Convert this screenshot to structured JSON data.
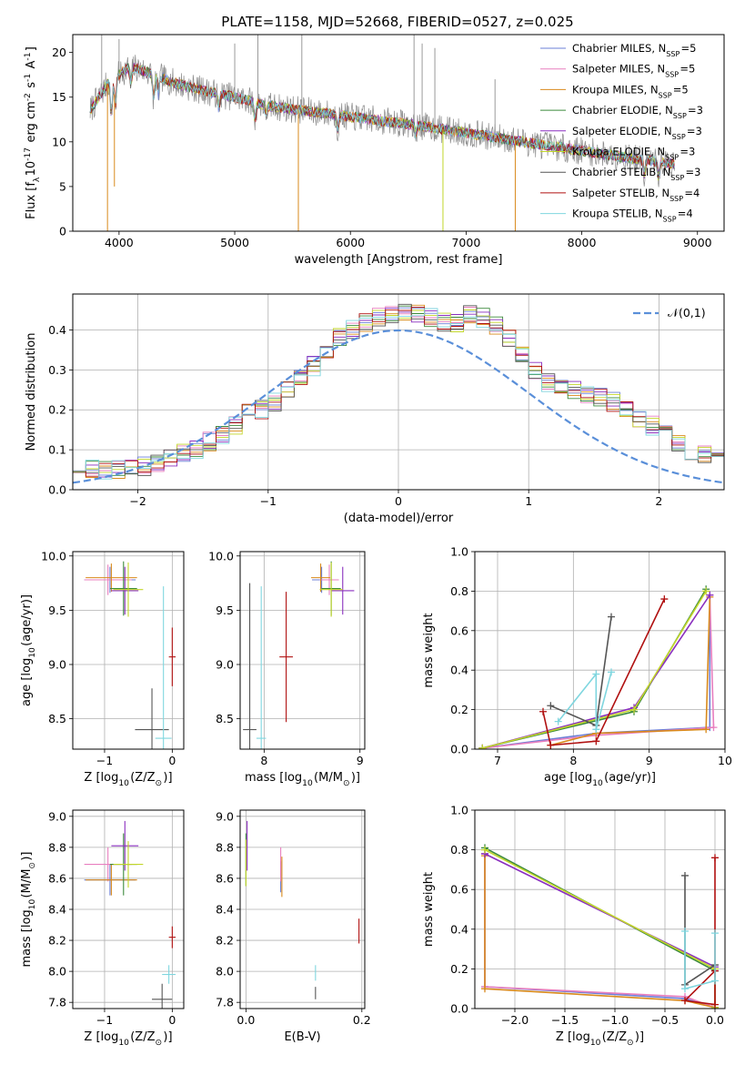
{
  "title": "PLATE=1158, MJD=52668, FIBERID=0527, z=0.025",
  "colors": {
    "Chabrier MILES": "#6b7fd7",
    "Salpeter MILES": "#e87fbf",
    "Kroupa MILES": "#d98a1c",
    "Chabrier ELODIE": "#3c8a3c",
    "Salpeter ELODIE": "#8a2fbf",
    "Kroupa ELODIE": "#c2d62a",
    "Chabrier STELIB": "#555555",
    "Salpeter STELIB": "#b01010",
    "Kroupa STELIB": "#7fd6df",
    "gaussian": "#5a8fd9"
  },
  "chart_data": [
    {
      "id": "spectrum",
      "type": "line",
      "xlabel": "wavelength [Angstrom, rest frame]",
      "ylabel": "Flux [f$_{\\lambda}$10$^{-17}$ erg cm$^{-2}$ s$^{-1}$ A$^{-1}$]",
      "xlim": [
        3600,
        9230
      ],
      "ylim": [
        0,
        22
      ],
      "xticks": [
        4000,
        5000,
        6000,
        7000,
        8000,
        9000
      ],
      "yticks": [
        0,
        5,
        10,
        15,
        20
      ],
      "legend": "top-right",
      "series": [
        {
          "name": "Chabrier MILES, N$_{SSP}$=5"
        },
        {
          "name": "Salpeter MILES, N$_{SSP}$=5"
        },
        {
          "name": "Kroupa MILES, N$_{SSP}$=5"
        },
        {
          "name": "Chabrier ELODIE, N$_{SSP}$=3"
        },
        {
          "name": "Salpeter ELODIE, N$_{SSP}$=3"
        },
        {
          "name": "Kroupa ELODIE, N$_{SSP}$=3"
        },
        {
          "name": "Chabrier STELIB, N$_{SSP}$=3"
        },
        {
          "name": "Salpeter STELIB, N$_{SSP}$=4"
        },
        {
          "name": "Kroupa STELIB, N$_{SSP}$=4"
        }
      ],
      "continuum": [
        [
          3750,
          13.5
        ],
        [
          3900,
          16.5
        ],
        [
          4100,
          18.5
        ],
        [
          4300,
          17.5
        ],
        [
          4500,
          16.5
        ],
        [
          4800,
          15.5
        ],
        [
          5000,
          15.0
        ],
        [
          5300,
          14.0
        ],
        [
          5600,
          13.5
        ],
        [
          6000,
          12.8
        ],
        [
          6500,
          12.0
        ],
        [
          7000,
          11.0
        ],
        [
          7500,
          10.0
        ],
        [
          8000,
          9.0
        ],
        [
          8500,
          8.0
        ],
        [
          8800,
          7.5
        ]
      ],
      "absorptions": [
        [
          3934,
          4.0
        ],
        [
          3969,
          3.0
        ],
        [
          4102,
          2.0
        ],
        [
          4300,
          3.0
        ],
        [
          4340,
          2.0
        ],
        [
          4861,
          1.5
        ],
        [
          5175,
          2.0
        ],
        [
          5270,
          1.0
        ],
        [
          5890,
          1.5
        ],
        [
          6563,
          1.0
        ],
        [
          8542,
          1.5
        ],
        [
          8662,
          1.5
        ]
      ],
      "drops": [
        [
          3900,
          0
        ],
        [
          3960,
          5
        ],
        [
          5550,
          0
        ],
        [
          6800,
          0
        ],
        [
          7425,
          0
        ]
      ],
      "data_spikes": [
        [
          3850,
          22
        ],
        [
          4000,
          21.5
        ],
        [
          5000,
          21
        ],
        [
          5200,
          22
        ],
        [
          5580,
          22
        ],
        [
          6550,
          22
        ],
        [
          6620,
          21
        ],
        [
          6730,
          20.5
        ],
        [
          7250,
          17
        ]
      ]
    },
    {
      "id": "residual_hist",
      "type": "area",
      "xlabel": "(data-model)/error",
      "ylabel": "Normed distribution",
      "xlim": [
        -2.5,
        2.5
      ],
      "ylim": [
        0,
        0.49
      ],
      "xticks": [
        -2,
        -1,
        0,
        1,
        2
      ],
      "yticks": [
        0.0,
        0.1,
        0.2,
        0.3,
        0.4
      ],
      "grid": true,
      "legend": "top-right",
      "gaussian_label": "$\\mathcal{N}(0,1)$",
      "bin_width": 0.1,
      "bin_start": -2.5,
      "shape": [
        0.05,
        0.05,
        0.05,
        0.05,
        0.05,
        0.06,
        0.07,
        0.08,
        0.09,
        0.1,
        0.12,
        0.14,
        0.16,
        0.19,
        0.2,
        0.22,
        0.25,
        0.28,
        0.31,
        0.35,
        0.38,
        0.4,
        0.42,
        0.43,
        0.44,
        0.44,
        0.44,
        0.43,
        0.42,
        0.42,
        0.44,
        0.43,
        0.41,
        0.38,
        0.34,
        0.3,
        0.27,
        0.26,
        0.25,
        0.24,
        0.23,
        0.22,
        0.2,
        0.18,
        0.16,
        0.14,
        0.12,
        0.1,
        0.09,
        0.08,
        0.07,
        0.06,
        0.05,
        0.045,
        0.04,
        0.035,
        0.03,
        0.025,
        0.025,
        0.02
      ]
    },
    {
      "id": "age_vs_Z",
      "type": "scatter",
      "xlabel": "Z [log$_{10}$(Z/Z$_\\odot$)]",
      "ylabel": "age  [log$_{10}$(age/yr)]",
      "xlim": [
        -1.47,
        0.17
      ],
      "ylim": [
        8.22,
        10.04
      ],
      "xticks": [
        -1,
        0
      ],
      "yticks": [
        8.5,
        9.0,
        9.5,
        10.0
      ],
      "grid": true,
      "points": [
        {
          "s": "Chabrier MILES",
          "x": -0.92,
          "xe": 0.38,
          "y": 9.78,
          "ye": 0.12
        },
        {
          "s": "Salpeter MILES",
          "x": -0.95,
          "xe": 0.35,
          "y": 9.78,
          "ye": 0.14
        },
        {
          "s": "Kroupa MILES",
          "x": -0.9,
          "xe": 0.38,
          "y": 9.8,
          "ye": 0.13
        },
        {
          "s": "Chabrier ELODIE",
          "x": -0.72,
          "xe": 0.2,
          "y": 9.7,
          "ye": 0.25
        },
        {
          "s": "Salpeter ELODIE",
          "x": -0.7,
          "xe": 0.2,
          "y": 9.68,
          "ye": 0.22
        },
        {
          "s": "Kroupa ELODIE",
          "x": -0.65,
          "xe": 0.22,
          "y": 9.69,
          "ye": 0.25
        },
        {
          "s": "Chabrier STELIB",
          "x": -0.3,
          "xe": 0.25,
          "y": 8.4,
          "ye": 0.38
        },
        {
          "s": "Salpeter STELIB",
          "x": 0.0,
          "xe": 0.05,
          "y": 9.07,
          "ye": 0.27
        },
        {
          "s": "Kroupa STELIB",
          "x": -0.13,
          "xe": 0.12,
          "y": 8.32,
          "ye": 1.4
        }
      ]
    },
    {
      "id": "age_vs_mass",
      "type": "scatter",
      "xlabel": "mass [log$_{10}$(M/M$_\\odot$)]",
      "ylabel": "",
      "xlim": [
        7.75,
        9.05
      ],
      "ylim": [
        8.22,
        10.04
      ],
      "xticks": [
        8,
        9
      ],
      "yticks": [
        8.5,
        9.0,
        9.5,
        10.0
      ],
      "grid": true,
      "points": [
        {
          "s": "Chabrier MILES",
          "x": 8.6,
          "xe": 0.1,
          "y": 9.78,
          "ye": 0.12
        },
        {
          "s": "Salpeter MILES",
          "x": 8.68,
          "xe": 0.1,
          "y": 9.78,
          "ye": 0.14
        },
        {
          "s": "Kroupa MILES",
          "x": 8.59,
          "xe": 0.1,
          "y": 9.8,
          "ye": 0.13
        },
        {
          "s": "Chabrier ELODIE",
          "x": 8.7,
          "xe": 0.1,
          "y": 9.7,
          "ye": 0.25
        },
        {
          "s": "Salpeter ELODIE",
          "x": 8.82,
          "xe": 0.12,
          "y": 9.68,
          "ye": 0.22
        },
        {
          "s": "Kroupa ELODIE",
          "x": 8.7,
          "xe": 0.12,
          "y": 9.69,
          "ye": 0.25
        },
        {
          "s": "Chabrier STELIB",
          "x": 7.85,
          "xe": 0.07,
          "y": 8.4,
          "ye": 1.35
        },
        {
          "s": "Salpeter STELIB",
          "x": 8.23,
          "xe": 0.07,
          "y": 9.07,
          "ye": 0.6
        },
        {
          "s": "Kroupa STELIB",
          "x": 7.97,
          "xe": 0.05,
          "y": 8.32,
          "ye": 1.4
        }
      ]
    },
    {
      "id": "weight_vs_age",
      "type": "line",
      "xlabel": "age  [log$_{10}$(age/yr)]",
      "ylabel": "mass weight",
      "xlim": [
        6.7,
        10.0
      ],
      "ylim": [
        0,
        1.0
      ],
      "xticks": [
        7,
        8,
        9,
        10
      ],
      "yticks": [
        0.0,
        0.2,
        0.4,
        0.6,
        0.8,
        1.0
      ],
      "grid": true,
      "series": [
        {
          "s": "Chabrier MILES",
          "x": [
            6.8,
            8.3,
            9.8,
            9.8
          ],
          "y": [
            0.005,
            0.08,
            0.11,
            0.78
          ]
        },
        {
          "s": "Salpeter MILES",
          "x": [
            6.8,
            8.3,
            9.85,
            9.8
          ],
          "y": [
            0.005,
            0.07,
            0.11,
            0.78
          ]
        },
        {
          "s": "Kroupa MILES",
          "x": [
            7.7,
            8.3,
            9.75,
            9.8
          ],
          "y": [
            0.02,
            0.08,
            0.1,
            0.77
          ]
        },
        {
          "s": "Chabrier ELODIE",
          "x": [
            6.8,
            8.8,
            9.75
          ],
          "y": [
            0.005,
            0.19,
            0.81
          ]
        },
        {
          "s": "Salpeter ELODIE",
          "x": [
            6.8,
            8.8,
            9.8
          ],
          "y": [
            0.005,
            0.21,
            0.78
          ]
        },
        {
          "s": "Kroupa ELODIE",
          "x": [
            6.8,
            8.8,
            9.75
          ],
          "y": [
            0.005,
            0.2,
            0.8
          ]
        },
        {
          "s": "Chabrier STELIB",
          "x": [
            7.7,
            8.3,
            8.5
          ],
          "y": [
            0.22,
            0.12,
            0.67
          ]
        },
        {
          "s": "Salpeter STELIB",
          "x": [
            7.6,
            7.7,
            8.3,
            9.2
          ],
          "y": [
            0.19,
            0.02,
            0.04,
            0.76
          ]
        },
        {
          "s": "Kroupa STELIB",
          "x": [
            7.8,
            8.3,
            8.3,
            8.5
          ],
          "y": [
            0.14,
            0.38,
            0.1,
            0.39
          ]
        }
      ]
    },
    {
      "id": "mass_vs_Z",
      "type": "scatter",
      "xlabel": "Z [log$_{10}$(Z/Z$_\\odot$)]",
      "ylabel": "mass [log$_{10}$(M/M$_\\odot$)]",
      "xlim": [
        -1.47,
        0.17
      ],
      "ylim": [
        7.76,
        9.04
      ],
      "xticks": [
        -1,
        0
      ],
      "yticks": [
        7.8,
        8.0,
        8.2,
        8.4,
        8.6,
        8.8,
        9.0
      ],
      "grid": true,
      "points": [
        {
          "s": "Chabrier MILES",
          "x": -0.92,
          "xe": 0.38,
          "y": 8.59,
          "ye": 0.1
        },
        {
          "s": "Salpeter MILES",
          "x": -0.95,
          "xe": 0.35,
          "y": 8.69,
          "ye": 0.11
        },
        {
          "s": "Kroupa MILES",
          "x": -0.9,
          "xe": 0.38,
          "y": 8.59,
          "ye": 0.1
        },
        {
          "s": "Chabrier ELODIE",
          "x": -0.72,
          "xe": 0.2,
          "y": 8.69,
          "ye": 0.2
        },
        {
          "s": "Salpeter ELODIE",
          "x": -0.7,
          "xe": 0.2,
          "y": 8.81,
          "ye": 0.16
        },
        {
          "s": "Kroupa ELODIE",
          "x": -0.65,
          "xe": 0.22,
          "y": 8.69,
          "ye": 0.15
        },
        {
          "s": "Chabrier STELIB",
          "x": -0.15,
          "xe": 0.15,
          "y": 7.82,
          "ye": 0.1
        },
        {
          "s": "Salpeter STELIB",
          "x": 0.0,
          "xe": 0.05,
          "y": 8.22,
          "ye": 0.07
        },
        {
          "s": "Kroupa STELIB",
          "x": -0.05,
          "xe": 0.1,
          "y": 7.98,
          "ye": 0.06
        }
      ]
    },
    {
      "id": "mass_vs_ebv",
      "type": "scatter",
      "xlabel": "E(B-V)",
      "ylabel": "",
      "xlim": [
        -0.01,
        0.205
      ],
      "ylim": [
        7.76,
        9.04
      ],
      "xticks": [
        0.0,
        0.2
      ],
      "yticks": [
        7.8,
        8.0,
        8.2,
        8.4,
        8.6,
        8.8,
        9.0
      ],
      "grid": true,
      "points": [
        {
          "s": "Chabrier MILES",
          "x": 0.06,
          "xe": 0,
          "y": 8.61,
          "ye": 0.1
        },
        {
          "s": "Salpeter MILES",
          "x": 0.06,
          "xe": 0,
          "y": 8.69,
          "ye": 0.11
        },
        {
          "s": "Kroupa MILES",
          "x": 0.062,
          "xe": 0,
          "y": 8.61,
          "ye": 0.13
        },
        {
          "s": "Chabrier ELODIE",
          "x": 0.0,
          "xe": 0,
          "y": 8.72,
          "ye": 0.17
        },
        {
          "s": "Salpeter ELODIE",
          "x": 0.002,
          "xe": 0,
          "y": 8.81,
          "ye": 0.16
        },
        {
          "s": "Kroupa ELODIE",
          "x": 0.0,
          "xe": 0,
          "y": 8.7,
          "ye": 0.15
        },
        {
          "s": "Chabrier STELIB",
          "x": 0.12,
          "xe": 0,
          "y": 7.86,
          "ye": 0.04
        },
        {
          "s": "Salpeter STELIB",
          "x": 0.195,
          "xe": 0,
          "y": 8.26,
          "ye": 0.08
        },
        {
          "s": "Kroupa STELIB",
          "x": 0.12,
          "xe": 0,
          "y": 7.99,
          "ye": 0.05
        }
      ]
    },
    {
      "id": "weight_vs_Z",
      "type": "line",
      "xlabel": "Z [log$_{10}$(Z/Z$_\\odot$)]",
      "ylabel": "mass weight",
      "xlim": [
        -2.4,
        0.1
      ],
      "ylim": [
        0,
        1.0
      ],
      "xticks": [
        -2.0,
        -1.5,
        -1.0,
        -0.5,
        0.0
      ],
      "yticks": [
        0.0,
        0.2,
        0.4,
        0.6,
        0.8,
        1.0
      ],
      "grid": true,
      "series": [
        {
          "s": "Chabrier MILES",
          "x": [
            -2.3,
            -2.3,
            -0.3,
            0.0
          ],
          "y": [
            0.78,
            0.11,
            0.05,
            0.005
          ]
        },
        {
          "s": "Salpeter MILES",
          "x": [
            -2.3,
            -2.3,
            -0.3,
            0.0
          ],
          "y": [
            0.78,
            0.11,
            0.06,
            0.005
          ]
        },
        {
          "s": "Kroupa MILES",
          "x": [
            -2.3,
            -2.3,
            -0.3,
            0.0
          ],
          "y": [
            0.77,
            0.1,
            0.04,
            0.005
          ]
        },
        {
          "s": "Chabrier ELODIE",
          "x": [
            -2.3,
            0.0,
            0.0
          ],
          "y": [
            0.81,
            0.19,
            0.005
          ]
        },
        {
          "s": "Salpeter ELODIE",
          "x": [
            -2.3,
            0.0,
            0.0
          ],
          "y": [
            0.78,
            0.21,
            0.005
          ]
        },
        {
          "s": "Kroupa ELODIE",
          "x": [
            -2.3,
            0.0,
            0.0
          ],
          "y": [
            0.8,
            0.2,
            0.005
          ]
        },
        {
          "s": "Chabrier STELIB",
          "x": [
            -0.3,
            -0.3,
            0.0
          ],
          "y": [
            0.67,
            0.12,
            0.22
          ]
        },
        {
          "s": "Salpeter STELIB",
          "x": [
            0.0,
            0.0,
            -0.3,
            0.0
          ],
          "y": [
            0.76,
            0.02,
            0.04,
            0.19
          ]
        },
        {
          "s": "Kroupa STELIB",
          "x": [
            -0.3,
            -0.3,
            0.0,
            0.0
          ],
          "y": [
            0.39,
            0.1,
            0.14,
            0.38
          ]
        }
      ]
    }
  ]
}
